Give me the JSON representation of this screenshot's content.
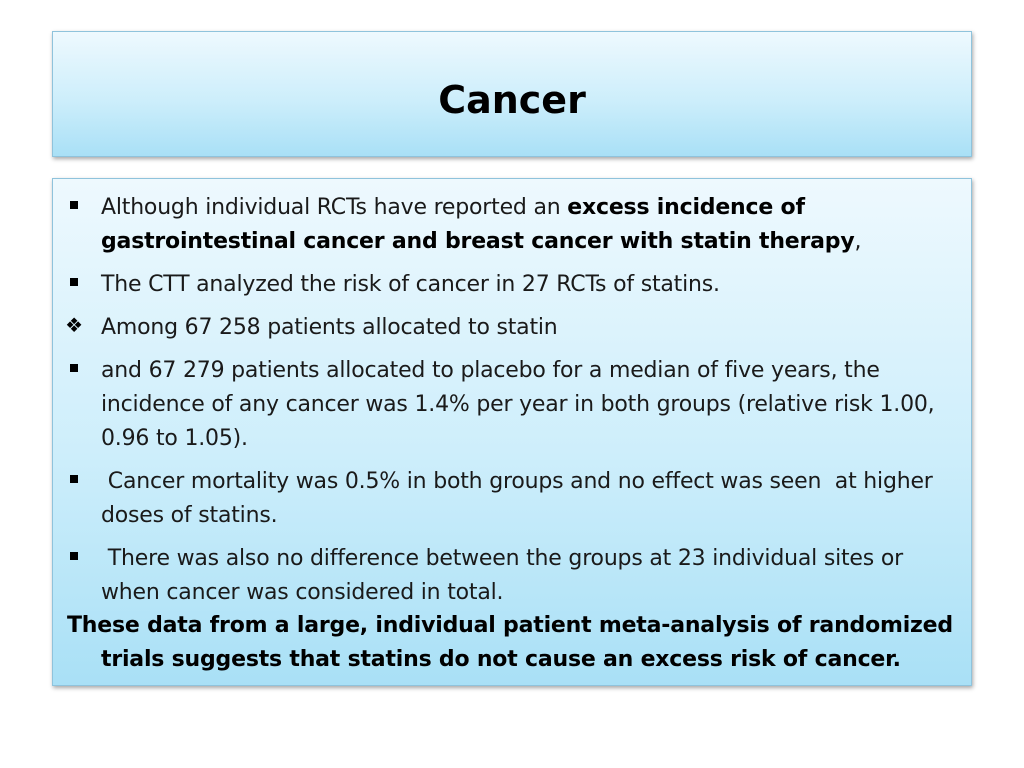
{
  "slide": {
    "title": "Cancer"
  },
  "bullets": [
    {
      "marker": "square",
      "text_plain_1": "Although individual RCTs have reported an ",
      "text_bold_1": "excess incidence of gastrointestinal cancer and breast cancer with statin therapy",
      "text_plain_2": ","
    },
    {
      "marker": "square",
      "text": "The CTT analyzed the risk of cancer in 27 RCTs of statins."
    },
    {
      "marker": "diamond",
      "text": "Among 67 258 patients allocated to statin"
    },
    {
      "marker": "square",
      "text": "and 67 279 patients allocated to placebo for a median of five years, the incidence of any cancer was 1.4% per year in both groups (relative risk 1.00, 0.96 to 1.05)."
    },
    {
      "marker": "square",
      "text": " Cancer mortality was 0.5% in both groups and no effect was seen  at higher doses of statins."
    },
    {
      "marker": "square",
      "text": " There was also no difference between the groups at 23 individual sites or when cancer was considered in total."
    }
  ],
  "conclusion": "These data from a large, individual patient meta-analysis of randomized trials suggests that statins do not cause an excess risk of cancer.",
  "colors": {
    "box_top": "#eef9fe",
    "box_bottom": "#a9e0f6",
    "box_border": "#8fc3dc",
    "text": "#1a1a1a"
  },
  "icons": {
    "square_bullet": "square-bullet-icon",
    "diamond_bullet": "diamond-bullet-icon"
  }
}
